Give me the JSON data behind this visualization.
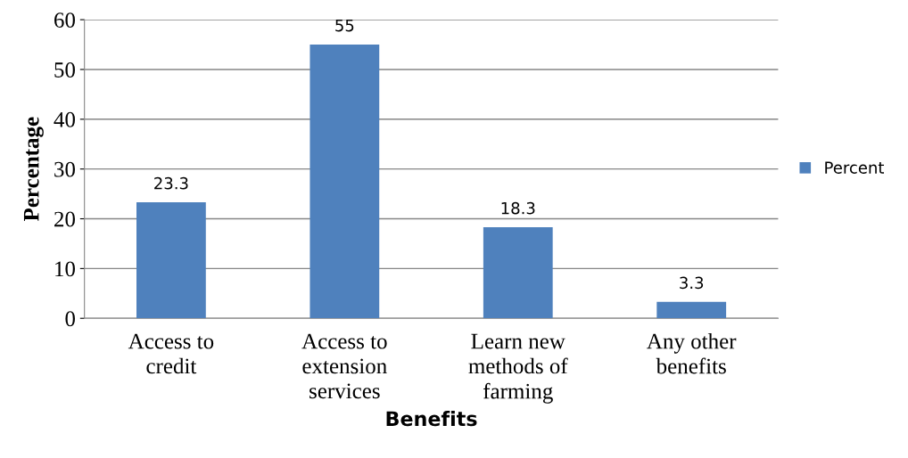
{
  "chart_data": {
    "type": "bar",
    "xlabel": "Benefits",
    "ylabel": "Percentage",
    "categories": [
      "Access to\ncredit",
      "Access to\nextension\nservices",
      "Learn new\nmethods of\nfarming",
      "Any other\nbenefits"
    ],
    "series": [
      {
        "name": "Percent",
        "color": "#4f81bd",
        "values": [
          23.3,
          55,
          18.3,
          3.3
        ]
      }
    ],
    "ylim": [
      0,
      60
    ],
    "yticks": [
      0,
      10,
      20,
      30,
      40,
      50,
      60
    ],
    "grid": "y",
    "legend": "right",
    "data_labels": true
  }
}
